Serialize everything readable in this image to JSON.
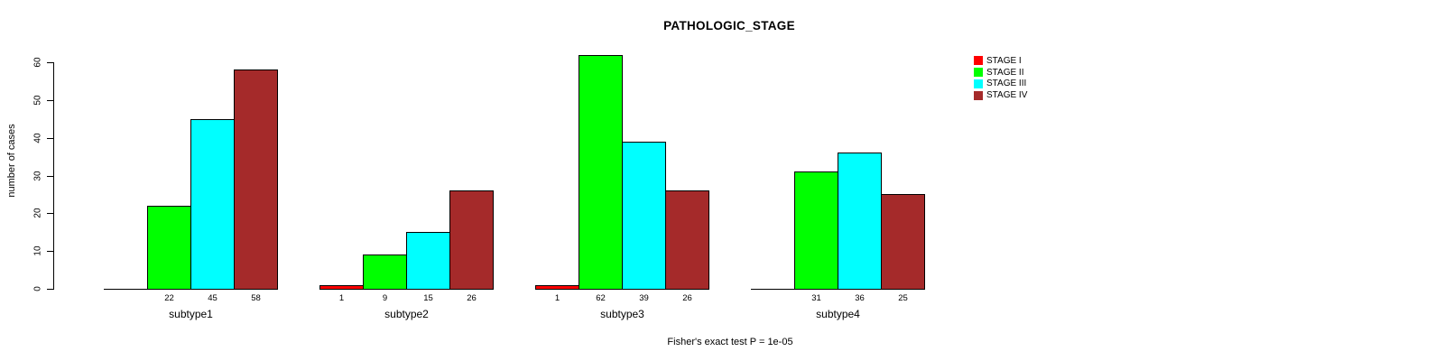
{
  "title": "PATHOLOGIC_STAGE",
  "ylabel": "number of cases",
  "footer": "Fisher's exact test P = 1e-05",
  "chart_data": {
    "type": "bar",
    "grouped": true,
    "title": "PATHOLOGIC_STAGE",
    "ylabel": "number of cases",
    "xlabel": "",
    "categories": [
      "subtype1",
      "subtype2",
      "subtype3",
      "subtype4"
    ],
    "series": [
      {
        "name": "STAGE I",
        "color": "#FF0000",
        "values": [
          0,
          1,
          1,
          0
        ]
      },
      {
        "name": "STAGE II",
        "color": "#00FF00",
        "values": [
          22,
          9,
          62,
          31
        ]
      },
      {
        "name": "STAGE III",
        "color": "#00FFFF",
        "values": [
          45,
          15,
          39,
          36
        ]
      },
      {
        "name": "STAGE IV",
        "color": "#A52A2A",
        "values": [
          58,
          26,
          26,
          25
        ]
      }
    ],
    "bar_value_labels_visible_when": "value > 0",
    "yticks": [
      0,
      10,
      20,
      30,
      40,
      50,
      60
    ],
    "ylim": [
      0,
      62
    ],
    "grid": false,
    "legend_position": "top-right",
    "annotation": "Fisher's exact test P = 1e-05"
  }
}
